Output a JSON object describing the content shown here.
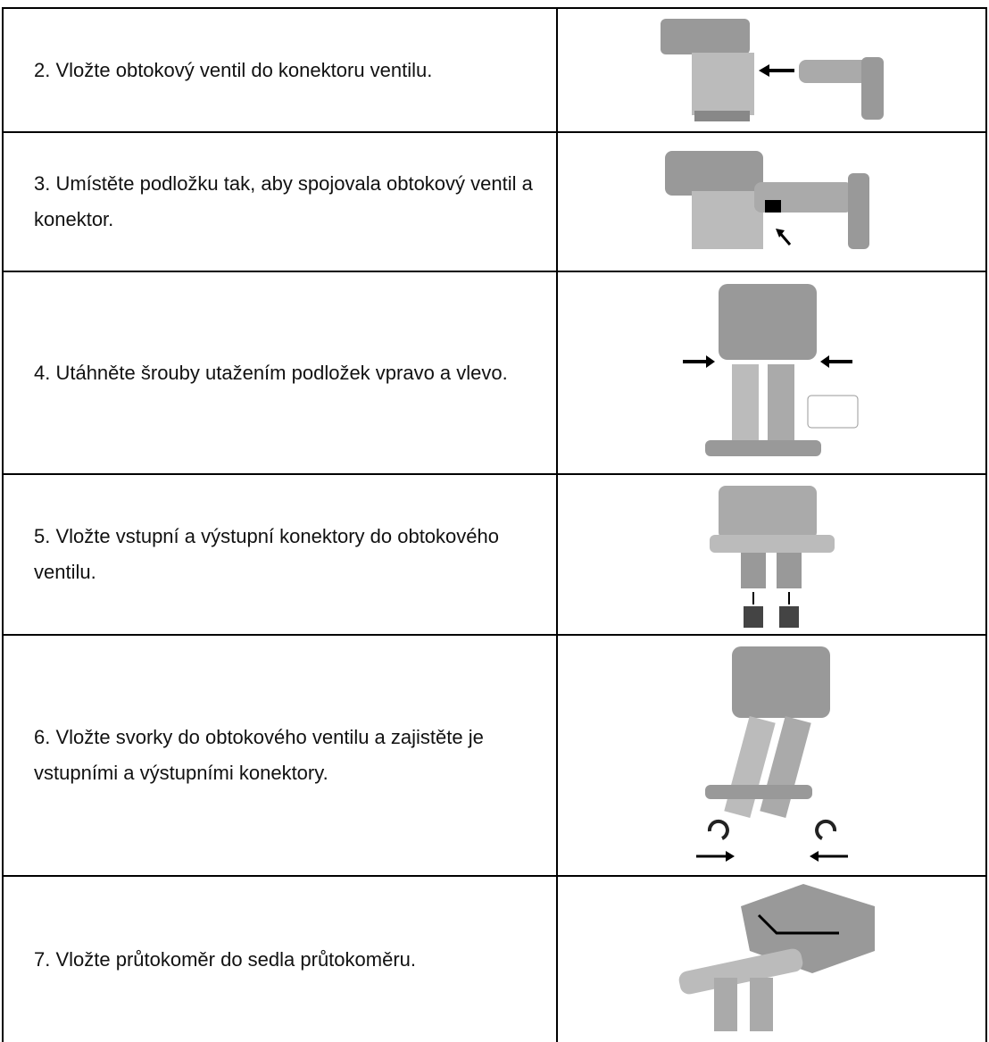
{
  "table": {
    "rows": [
      {
        "text": "2. Vložte obtokový ventil do konektoru ventilu."
      },
      {
        "text": "3. Umístěte podložku tak, aby spojovala obtokový ventil a konektor."
      },
      {
        "text": "4. Utáhněte šrouby utažením podložek vpravo a vlevo."
      },
      {
        "text": "5. Vložte vstupní a výstupní konektory do obtokového ventilu."
      },
      {
        "text": "6. Vložte svorky do obtokového ventilu a zajistěte je vstupními a výstupními konektory."
      },
      {
        "text": "7. Vložte průtokoměr do sedla průtokoměru."
      }
    ]
  }
}
